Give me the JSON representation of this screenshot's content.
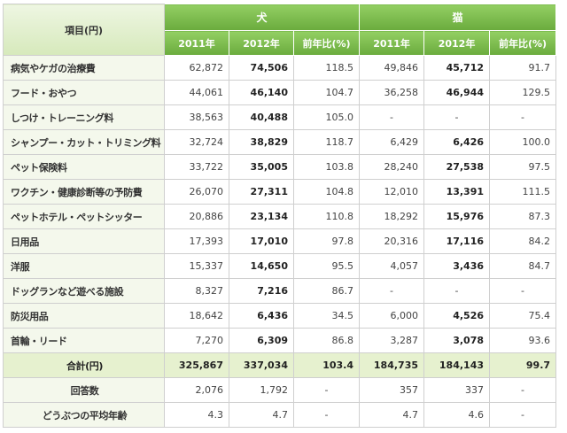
{
  "chart_data": {
    "type": "table",
    "corner_label": "項目(円)",
    "groups": [
      {
        "name": "犬",
        "columns": [
          "2011年",
          "2012年",
          "前年比(%)"
        ]
      },
      {
        "name": "猫",
        "columns": [
          "2011年",
          "2012年",
          "前年比(%)"
        ]
      }
    ],
    "rows": [
      {
        "label": "病気やケガの治療費",
        "values": [
          "62,872",
          "74,506",
          "118.5",
          "49,846",
          "45,712",
          "91.7"
        ]
      },
      {
        "label": "フード・おやつ",
        "values": [
          "44,061",
          "46,140",
          "104.7",
          "36,258",
          "46,944",
          "129.5"
        ]
      },
      {
        "label": "しつけ・トレーニング料",
        "values": [
          "38,563",
          "40,488",
          "105.0",
          "-",
          "-",
          "-"
        ]
      },
      {
        "label": "シャンプー・カット・トリミング料",
        "values": [
          "32,724",
          "38,829",
          "118.7",
          "6,429",
          "6,426",
          "100.0"
        ]
      },
      {
        "label": "ペット保険料",
        "values": [
          "33,722",
          "35,005",
          "103.8",
          "28,240",
          "27,538",
          "97.5"
        ]
      },
      {
        "label": "ワクチン・健康診断等の予防費",
        "values": [
          "26,070",
          "27,311",
          "104.8",
          "12,010",
          "13,391",
          "111.5"
        ]
      },
      {
        "label": "ペットホテル・ペットシッター",
        "values": [
          "20,886",
          "23,134",
          "110.8",
          "18,292",
          "15,976",
          "87.3"
        ]
      },
      {
        "label": "日用品",
        "values": [
          "17,393",
          "17,010",
          "97.8",
          "20,316",
          "17,116",
          "84.2"
        ]
      },
      {
        "label": "洋服",
        "values": [
          "15,337",
          "14,650",
          "95.5",
          "4,057",
          "3,436",
          "84.7"
        ]
      },
      {
        "label": "ドッグランなど遊べる施設",
        "values": [
          "8,327",
          "7,216",
          "86.7",
          "-",
          "-",
          "-"
        ]
      },
      {
        "label": "防災用品",
        "values": [
          "18,642",
          "6,436",
          "34.5",
          "6,000",
          "4,526",
          "75.4"
        ]
      },
      {
        "label": "首輪・リード",
        "values": [
          "7,270",
          "6,309",
          "86.8",
          "3,287",
          "3,078",
          "93.6"
        ]
      }
    ],
    "total": {
      "label": "合計(円)",
      "values": [
        "325,867",
        "337,034",
        "103.4",
        "184,735",
        "184,143",
        "99.7"
      ]
    },
    "respondents": {
      "label": "回答数",
      "values": [
        "2,076",
        "1,792",
        "-",
        "357",
        "337",
        "-"
      ]
    },
    "average_age": {
      "label": "どうぶつの平均年齢",
      "values": [
        "4.3",
        "4.7",
        "-",
        "4.7",
        "4.6",
        "-"
      ]
    }
  },
  "colors": {
    "header_green": "#7ab94a",
    "total_row_bg": "#e6f1cf",
    "label_col_bg": "#f4f8ec",
    "border": "#cfcfcf"
  }
}
